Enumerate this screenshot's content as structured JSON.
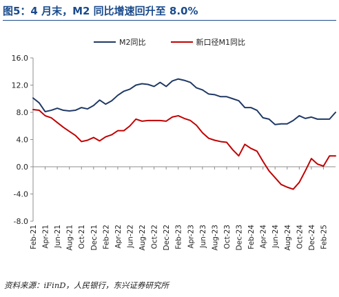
{
  "title": "图5：4 月末，M2 同比增速回升至 8.0%",
  "source": "资料来源：iFinD，人民银行，东兴证券研究所",
  "chart_data": {
    "type": "line",
    "ylim": [
      -8,
      16
    ],
    "yticks": [
      "16.0",
      "12.0",
      "8.0",
      "4.0",
      "0.0",
      "-4.0",
      "-8.0"
    ],
    "ytick_values": [
      16,
      12,
      8,
      4,
      0,
      -4,
      -8
    ],
    "xtick_labels": [
      "Feb-21",
      "Apr-21",
      "Jun-21",
      "Aug-21",
      "Oct-21",
      "Dec-21",
      "Feb-22",
      "Apr-22",
      "Jun-22",
      "Aug-22",
      "Oct-22",
      "Dec-22",
      "Feb-23",
      "Apr-23",
      "Jun-23",
      "Aug-23",
      "Oct-23",
      "Dec-23",
      "Feb-24",
      "Apr-24",
      "Jun-24",
      "Aug-24",
      "Oct-24",
      "Dec-24",
      "Feb-25"
    ],
    "legend_position": "top-center",
    "grid": false,
    "x": [
      "Feb-21",
      "Mar-21",
      "Apr-21",
      "May-21",
      "Jun-21",
      "Jul-21",
      "Aug-21",
      "Sep-21",
      "Oct-21",
      "Nov-21",
      "Dec-21",
      "Jan-22",
      "Feb-22",
      "Mar-22",
      "Apr-22",
      "May-22",
      "Jun-22",
      "Jul-22",
      "Aug-22",
      "Sep-22",
      "Oct-22",
      "Nov-22",
      "Dec-22",
      "Jan-23",
      "Feb-23",
      "Mar-23",
      "Apr-23",
      "May-23",
      "Jun-23",
      "Jul-23",
      "Aug-23",
      "Sep-23",
      "Oct-23",
      "Nov-23",
      "Dec-23",
      "Jan-24",
      "Feb-24",
      "Mar-24",
      "Apr-24",
      "May-24",
      "Jun-24",
      "Jul-24",
      "Aug-24",
      "Sep-24",
      "Oct-24",
      "Nov-24",
      "Dec-24",
      "Jan-25",
      "Feb-25",
      "Mar-25",
      "Apr-25"
    ],
    "series": [
      {
        "name": "M2同比",
        "color": "#1f3864",
        "values": [
          10.1,
          9.4,
          8.1,
          8.3,
          8.6,
          8.3,
          8.2,
          8.3,
          8.7,
          8.5,
          9.0,
          9.8,
          9.2,
          9.7,
          10.5,
          11.1,
          11.4,
          12.0,
          12.2,
          12.1,
          11.8,
          12.4,
          11.8,
          12.6,
          12.9,
          12.7,
          12.4,
          11.6,
          11.3,
          10.7,
          10.6,
          10.3,
          10.3,
          10.0,
          9.7,
          8.7,
          8.7,
          8.3,
          7.2,
          7.0,
          6.2,
          6.3,
          6.3,
          6.8,
          7.5,
          7.1,
          7.3,
          7.0,
          7.0,
          7.0,
          8.0
        ]
      },
      {
        "name": "新口径M1同比",
        "color": "#c00000",
        "values": [
          8.4,
          8.3,
          7.5,
          7.2,
          6.5,
          5.8,
          5.2,
          4.6,
          3.7,
          3.9,
          4.3,
          3.8,
          4.4,
          4.7,
          5.3,
          5.3,
          6.0,
          7.0,
          6.7,
          6.8,
          6.8,
          6.8,
          6.7,
          7.3,
          7.5,
          7.1,
          6.8,
          6.1,
          5.0,
          4.2,
          3.9,
          3.7,
          3.6,
          2.5,
          1.6,
          3.3,
          2.7,
          2.3,
          0.8,
          -0.6,
          -1.6,
          -2.6,
          -3.0,
          -3.3,
          -2.3,
          -0.6,
          1.2,
          0.4,
          0.1,
          1.6,
          1.6
        ]
      }
    ]
  }
}
